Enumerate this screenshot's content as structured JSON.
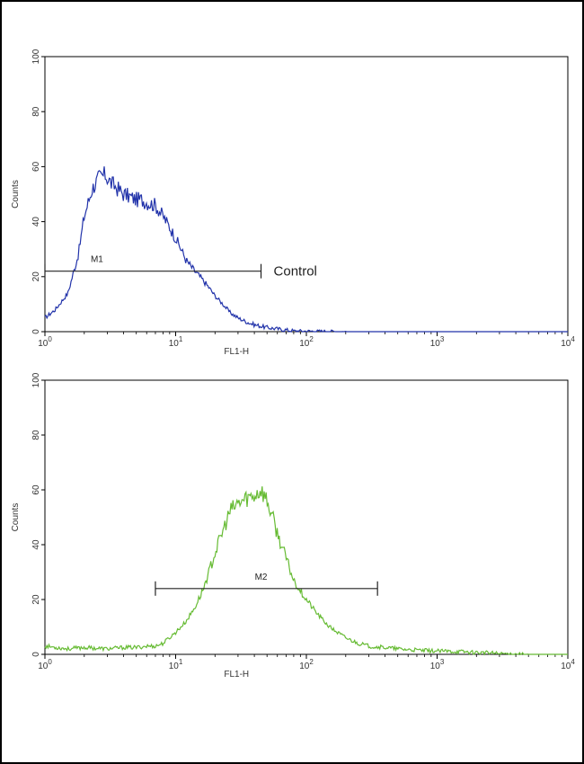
{
  "chart_data": [
    {
      "type": "line",
      "name": "top-histogram",
      "xlabel": "FL1-H",
      "ylabel": "Counts",
      "x_scale": "log",
      "xlim": [
        1,
        10000
      ],
      "ylim": [
        0,
        100
      ],
      "x_ticks": [
        {
          "base": "10",
          "exp": "0"
        },
        {
          "base": "10",
          "exp": "1"
        },
        {
          "base": "10",
          "exp": "2"
        },
        {
          "base": "10",
          "exp": "3"
        },
        {
          "base": "10",
          "exp": "4"
        }
      ],
      "y_ticks": [
        "0",
        "20",
        "40",
        "60",
        "80",
        "100"
      ],
      "color": "#2233aa",
      "series": [
        {
          "x": [
            1,
            1.2,
            1.5,
            1.8,
            2,
            2.3,
            2.6,
            2.9,
            3.2,
            3.6,
            4,
            4.5,
            5,
            5.5,
            6,
            7,
            8,
            9,
            10,
            11,
            12,
            14,
            16,
            18,
            20,
            23,
            26,
            30,
            35,
            40,
            50,
            60,
            70,
            80,
            100,
            150,
            200,
            1000,
            10000
          ],
          "y": [
            5,
            8,
            14,
            28,
            42,
            52,
            56,
            57,
            54,
            52,
            50,
            49,
            48,
            48,
            47,
            46,
            42,
            38,
            34,
            30,
            26,
            22,
            19,
            16,
            13,
            10,
            7,
            5,
            3.5,
            2.5,
            1.5,
            1,
            0.6,
            0.3,
            0.2,
            0.1,
            0,
            0,
            0
          ]
        }
      ],
      "gate": {
        "label": "M1",
        "x_start": 1,
        "x_end": 45,
        "y": 22
      },
      "annotation": "Control"
    },
    {
      "type": "line",
      "name": "bottom-histogram",
      "xlabel": "FL1-H",
      "ylabel": "Counts",
      "x_scale": "log",
      "xlim": [
        1,
        10000
      ],
      "ylim": [
        0,
        100
      ],
      "x_ticks": [
        {
          "base": "10",
          "exp": "0"
        },
        {
          "base": "10",
          "exp": "1"
        },
        {
          "base": "10",
          "exp": "2"
        },
        {
          "base": "10",
          "exp": "3"
        },
        {
          "base": "10",
          "exp": "4"
        }
      ],
      "y_ticks": [
        "0",
        "20",
        "40",
        "60",
        "80",
        "100"
      ],
      "color": "#66bb33",
      "series": [
        {
          "x": [
            1,
            1.5,
            2,
            3,
            4,
            5,
            6,
            7,
            8,
            10,
            12,
            14,
            16,
            18,
            20,
            23,
            26,
            30,
            35,
            40,
            45,
            50,
            55,
            60,
            70,
            80,
            100,
            120,
            150,
            200,
            250,
            300,
            400,
            500,
            700,
            1000,
            1500,
            2000,
            3000,
            5000,
            10000
          ],
          "y": [
            3,
            2,
            2.5,
            2,
            2.5,
            2.5,
            3,
            3,
            4,
            8,
            12,
            17,
            23,
            30,
            37,
            45,
            52,
            55,
            57,
            58,
            60,
            56,
            50,
            44,
            35,
            27,
            20,
            15,
            10,
            6,
            4,
            3,
            2.5,
            2,
            1.5,
            1.2,
            1,
            0.7,
            0.3,
            0,
            0
          ]
        }
      ],
      "gate": {
        "label": "M2",
        "x_start": 7,
        "x_end": 350,
        "y": 24
      }
    }
  ]
}
